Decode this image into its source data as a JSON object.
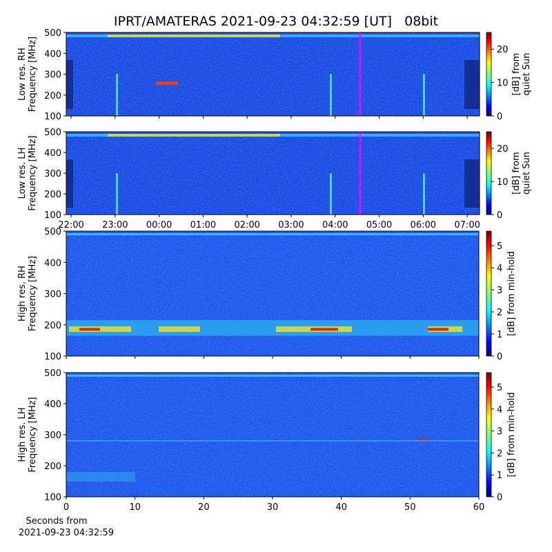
{
  "title": "IPRT/AMATERAS 2021-09-23 04:32:59 [UT]   08bit",
  "chart_data": [
    {
      "type": "heatmap",
      "ylabel": [
        "Low res. RH",
        "Frequency [MHz]"
      ],
      "ylim": [
        100,
        500
      ],
      "yticks": [
        100,
        200,
        300,
        400,
        500
      ],
      "xlim": [
        21.89,
        31.28
      ],
      "show_xtick_labels": false,
      "xticks": [
        {
          "value": 22,
          "label": "22:00"
        },
        {
          "value": 23,
          "label": "23:00"
        },
        {
          "value": 24,
          "label": "00:00"
        },
        {
          "value": 25,
          "label": "01:00"
        },
        {
          "value": 26,
          "label": "02:00"
        },
        {
          "value": 27,
          "label": "03:00"
        },
        {
          "value": 28,
          "label": "04:00"
        },
        {
          "value": 29,
          "label": "05:00"
        },
        {
          "value": 30,
          "label": "06:00"
        },
        {
          "value": 31,
          "label": "07:00"
        }
      ],
      "colorbar": {
        "label": [
          "[dB] from",
          "quiet Sun"
        ],
        "lim": [
          0,
          25
        ],
        "ticks": [
          0,
          10,
          20
        ]
      }
    },
    {
      "type": "heatmap",
      "ylabel": [
        "Low res. LH",
        "Frequency [MHz]"
      ],
      "ylim": [
        100,
        500
      ],
      "yticks": [
        100,
        200,
        300,
        400,
        500
      ],
      "xlim": [
        21.89,
        31.28
      ],
      "show_xtick_labels": true,
      "xticks": [
        {
          "value": 22,
          "label": "22:00"
        },
        {
          "value": 23,
          "label": "23:00"
        },
        {
          "value": 24,
          "label": "00:00"
        },
        {
          "value": 25,
          "label": "01:00"
        },
        {
          "value": 26,
          "label": "02:00"
        },
        {
          "value": 27,
          "label": "03:00"
        },
        {
          "value": 28,
          "label": "04:00"
        },
        {
          "value": 29,
          "label": "05:00"
        },
        {
          "value": 30,
          "label": "06:00"
        },
        {
          "value": 31,
          "label": "07:00"
        }
      ],
      "colorbar": {
        "label": [
          "[dB] from",
          "quiet Sun"
        ],
        "lim": [
          0,
          25
        ],
        "ticks": [
          0,
          10,
          20
        ]
      }
    },
    {
      "type": "heatmap",
      "ylabel": [
        "High res. RH",
        "Frequency [MHz]"
      ],
      "ylim": [
        100,
        500
      ],
      "yticks": [
        100,
        200,
        300,
        400,
        500
      ],
      "xlim": [
        0,
        60
      ],
      "show_xtick_labels": false,
      "xticks": [
        0,
        10,
        20,
        30,
        40,
        50,
        60
      ],
      "colorbar": {
        "label": [
          "[dB] from min-hold"
        ],
        "lim": [
          0,
          5.66
        ],
        "ticks": [
          0,
          1,
          2,
          3,
          4,
          5
        ]
      }
    },
    {
      "type": "heatmap",
      "ylabel": [
        "High res. LH",
        "Frequency [MHz]"
      ],
      "ylim": [
        100,
        500
      ],
      "yticks": [
        100,
        200,
        300,
        400,
        500
      ],
      "xlim": [
        0,
        60
      ],
      "show_xtick_labels": true,
      "xticks": [
        0,
        10,
        20,
        30,
        40,
        50,
        60
      ],
      "xlabel": [
        "Seconds from",
        "2021-09-23 04:32:59"
      ],
      "colorbar": {
        "label": [
          "[dB] from min-hold"
        ],
        "lim": [
          0,
          5.66
        ],
        "ticks": [
          0,
          1,
          2,
          3,
          4,
          5
        ]
      }
    }
  ]
}
